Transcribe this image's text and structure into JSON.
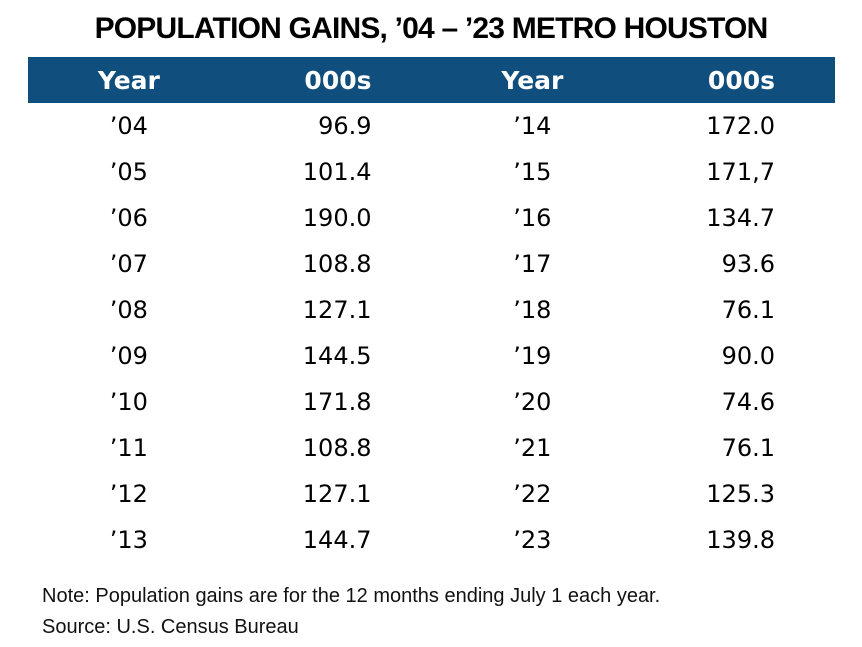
{
  "title": "POPULATION GAINS, ’04 – ’23 METRO HOUSTON",
  "table": {
    "header_bg_color": "#104E7E",
    "header_text_color": "#ffffff",
    "columns": [
      "Year",
      "000s",
      "Year",
      "000s"
    ],
    "rows": [
      {
        "year_left": "’04",
        "value_left": "96.9",
        "year_right": "’14",
        "value_right": "172.0"
      },
      {
        "year_left": "’05",
        "value_left": "101.4",
        "year_right": "’15",
        "value_right": "171,7"
      },
      {
        "year_left": "’06",
        "value_left": "190.0",
        "year_right": "’16",
        "value_right": "134.7"
      },
      {
        "year_left": "’07",
        "value_left": "108.8",
        "year_right": "’17",
        "value_right": "93.6"
      },
      {
        "year_left": "’08",
        "value_left": "127.1",
        "year_right": "’18",
        "value_right": "76.1"
      },
      {
        "year_left": "’09",
        "value_left": "144.5",
        "year_right": "’19",
        "value_right": "90.0"
      },
      {
        "year_left": "’10",
        "value_left": "171.8",
        "year_right": "’20",
        "value_right": "74.6"
      },
      {
        "year_left": "’11",
        "value_left": "108.8",
        "year_right": "’21",
        "value_right": "76.1"
      },
      {
        "year_left": "’12",
        "value_left": "127.1",
        "year_right": "’22",
        "value_right": "125.3"
      },
      {
        "year_left": "’13",
        "value_left": "144.7",
        "year_right": "’23",
        "value_right": "139.8"
      }
    ]
  },
  "notes": {
    "note": "Note: Population gains are for the 12 months ending July 1 each year.",
    "source": "Source: U.S. Census Bureau"
  },
  "chart_data": {
    "type": "table",
    "title": "POPULATION GAINS, ’04 – ’23 METRO HOUSTON",
    "columns": [
      "Year",
      "000s",
      "Year",
      "000s"
    ],
    "years": [
      "’04",
      "’05",
      "’06",
      "’07",
      "’08",
      "’09",
      "’10",
      "’11",
      "’12",
      "’13",
      "’14",
      "’15",
      "’16",
      "’17",
      "’18",
      "’19",
      "’20",
      "’21",
      "’22",
      "’23"
    ],
    "values_000s": [
      96.9,
      101.4,
      190.0,
      108.8,
      127.1,
      144.5,
      171.8,
      108.8,
      127.1,
      144.7,
      172.0,
      171.7,
      134.7,
      93.6,
      76.1,
      90.0,
      74.6,
      76.1,
      125.3,
      139.8
    ],
    "values_as_displayed": [
      "96.9",
      "101.4",
      "190.0",
      "108.8",
      "127.1",
      "144.5",
      "171.8",
      "108.8",
      "127.1",
      "144.7",
      "172.0",
      "171,7",
      "134.7",
      "93.6",
      "76.1",
      "90.0",
      "74.6",
      "76.1",
      "125.3",
      "139.8"
    ],
    "note": "Note: Population gains are for the 12 months ending July 1 each year.",
    "source": "Source: U.S. Census Bureau"
  }
}
